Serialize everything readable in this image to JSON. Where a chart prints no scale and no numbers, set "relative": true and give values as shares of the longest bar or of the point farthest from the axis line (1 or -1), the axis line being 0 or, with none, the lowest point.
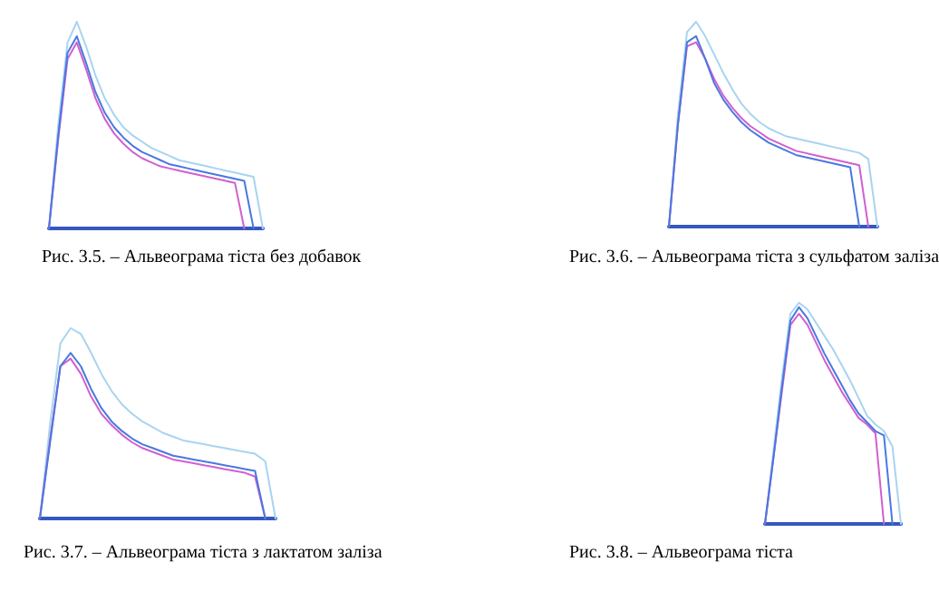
{
  "chart_data": [
    {
      "type": "line",
      "title": "Рис. 3.5. – Альвеограма тіста без добавок",
      "relative": true,
      "line_style": "solid",
      "categories": [
        null,
        null,
        null,
        null,
        null,
        null,
        null,
        null,
        null,
        null,
        null,
        null,
        null,
        null,
        null,
        null,
        null,
        null,
        null,
        null,
        null,
        null,
        null,
        null
      ],
      "series": [
        {
          "color": "#a8d4f0",
          "values": [
            0,
            0.5,
            0.9,
            1.0,
            0.88,
            0.74,
            0.63,
            0.55,
            0.49,
            0.45,
            0.42,
            0.39,
            0.37,
            0.35,
            0.33,
            0.32,
            0.31,
            0.3,
            0.29,
            0.28,
            0.27,
            0.26,
            0.25,
            0
          ]
        },
        {
          "color": "#d060d0",
          "values": [
            0,
            0.43,
            0.82,
            0.9,
            0.77,
            0.63,
            0.53,
            0.46,
            0.41,
            0.37,
            0.34,
            0.32,
            0.3,
            0.29,
            0.28,
            0.27,
            0.26,
            0.25,
            0.24,
            0.23,
            0.22,
            0,
            null,
            null
          ]
        },
        {
          "color": "#4a78e0",
          "values": [
            0,
            0.45,
            0.85,
            0.93,
            0.8,
            0.66,
            0.56,
            0.49,
            0.44,
            0.4,
            0.37,
            0.35,
            0.33,
            0.31,
            0.3,
            0.29,
            0.28,
            0.27,
            0.26,
            0.25,
            0.24,
            0.23,
            0,
            null
          ]
        }
      ]
    },
    {
      "type": "line",
      "title": "Рис. 3.6. – Альвеограма тіста з сульфатом заліза",
      "relative": true,
      "line_style": "solid",
      "categories": [
        null,
        null,
        null,
        null,
        null,
        null,
        null,
        null,
        null,
        null,
        null,
        null,
        null,
        null,
        null,
        null,
        null,
        null,
        null,
        null,
        null,
        null,
        null,
        null
      ],
      "series": [
        {
          "color": "#a8d4f0",
          "values": [
            0,
            0.55,
            0.95,
            1.0,
            0.93,
            0.84,
            0.75,
            0.67,
            0.6,
            0.55,
            0.51,
            0.48,
            0.46,
            0.44,
            0.43,
            0.42,
            0.41,
            0.4,
            0.39,
            0.38,
            0.37,
            0.36,
            0.33,
            0
          ]
        },
        {
          "color": "#d060d0",
          "values": [
            0,
            0.5,
            0.88,
            0.9,
            0.82,
            0.72,
            0.64,
            0.58,
            0.53,
            0.49,
            0.46,
            0.43,
            0.41,
            0.39,
            0.37,
            0.36,
            0.35,
            0.34,
            0.33,
            0.32,
            0.31,
            0.3,
            0,
            null
          ]
        },
        {
          "color": "#4a78e0",
          "values": [
            0,
            0.5,
            0.9,
            0.93,
            0.82,
            0.7,
            0.62,
            0.56,
            0.51,
            0.47,
            0.44,
            0.41,
            0.39,
            0.37,
            0.35,
            0.34,
            0.33,
            0.32,
            0.31,
            0.3,
            0.29,
            0,
            null,
            null
          ]
        }
      ]
    },
    {
      "type": "line",
      "title": "Рис. 3.7. – Альвеограма тіста з лактатом заліза",
      "relative": true,
      "line_style": "solid",
      "categories": [
        null,
        null,
        null,
        null,
        null,
        null,
        null,
        null,
        null,
        null,
        null,
        null,
        null,
        null,
        null,
        null,
        null,
        null,
        null,
        null,
        null,
        null,
        null,
        null
      ],
      "series": [
        {
          "color": "#a8d4f0",
          "values": [
            0,
            0.5,
            0.92,
            1.0,
            0.97,
            0.87,
            0.76,
            0.67,
            0.6,
            0.55,
            0.51,
            0.48,
            0.45,
            0.43,
            0.41,
            0.4,
            0.39,
            0.38,
            0.37,
            0.36,
            0.35,
            0.34,
            0.3,
            0
          ]
        },
        {
          "color": "#d060d0",
          "values": [
            0,
            0.42,
            0.8,
            0.84,
            0.76,
            0.64,
            0.55,
            0.49,
            0.44,
            0.4,
            0.37,
            0.35,
            0.33,
            0.31,
            0.3,
            0.29,
            0.28,
            0.27,
            0.26,
            0.25,
            0.24,
            0.22,
            0,
            null
          ]
        },
        {
          "color": "#4a78e0",
          "values": [
            0,
            0.4,
            0.8,
            0.87,
            0.8,
            0.68,
            0.58,
            0.51,
            0.46,
            0.42,
            0.39,
            0.37,
            0.35,
            0.33,
            0.32,
            0.31,
            0.3,
            0.29,
            0.28,
            0.27,
            0.26,
            0.25,
            0,
            null
          ]
        }
      ]
    },
    {
      "type": "line",
      "title": "Рис. 3.8. – Альвеограма тіста",
      "relative": true,
      "line_style": "solid",
      "categories": [
        null,
        null,
        null,
        null,
        null,
        null,
        null,
        null,
        null,
        null,
        null,
        null,
        null,
        null,
        null,
        null,
        null
      ],
      "series": [
        {
          "color": "#a8d4f0",
          "values": [
            0,
            0.33,
            0.66,
            0.95,
            1.0,
            0.97,
            0.91,
            0.85,
            0.79,
            0.72,
            0.65,
            0.57,
            0.49,
            0.45,
            0.42,
            0.35,
            0
          ]
        },
        {
          "color": "#d060d0",
          "values": [
            0,
            0.3,
            0.6,
            0.9,
            0.95,
            0.9,
            0.82,
            0.74,
            0.67,
            0.6,
            0.54,
            0.48,
            0.45,
            0.41,
            0,
            null,
            null
          ]
        },
        {
          "color": "#4a78e0",
          "values": [
            0,
            0.3,
            0.62,
            0.92,
            0.98,
            0.93,
            0.85,
            0.77,
            0.7,
            0.63,
            0.56,
            0.5,
            0.46,
            0.42,
            0.4,
            0,
            null
          ]
        }
      ]
    }
  ]
}
